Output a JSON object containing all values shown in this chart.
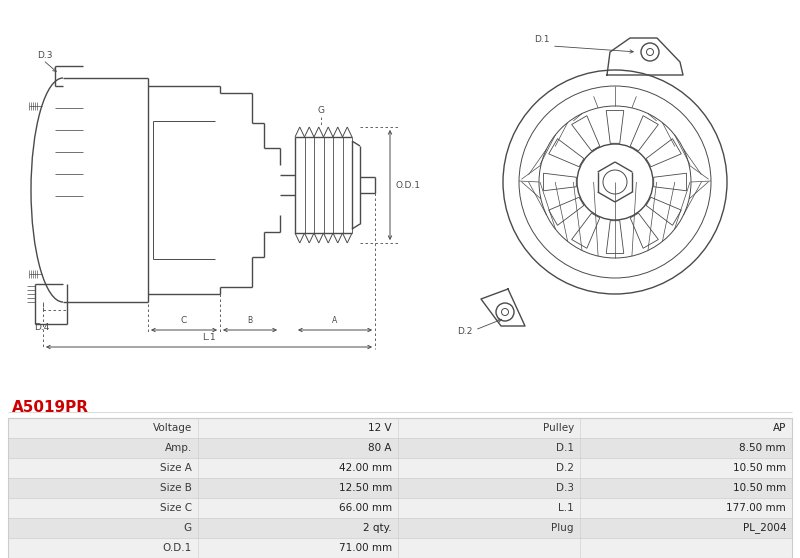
{
  "title": "A5019PR",
  "title_color": "#cc0000",
  "bg_color": "#ffffff",
  "table_row_bg1": "#f0f0f0",
  "table_row_bg2": "#e4e4e4",
  "table_border_color": "#cccccc",
  "table_data": [
    [
      "Voltage",
      "12 V",
      "Pulley",
      "AP"
    ],
    [
      "Amp.",
      "80 A",
      "D.1",
      "8.50 mm"
    ],
    [
      "Size A",
      "42.00 mm",
      "D.2",
      "10.50 mm"
    ],
    [
      "Size B",
      "12.50 mm",
      "D.3",
      "10.50 mm"
    ],
    [
      "Size C",
      "66.00 mm",
      "L.1",
      "177.00 mm"
    ],
    [
      "G",
      "2 qty.",
      "Plug",
      "PL_2004"
    ],
    [
      "O.D.1",
      "71.00 mm",
      "",
      ""
    ]
  ],
  "lc": "#4a4a4a",
  "lw": 1.0,
  "fs": 6.5,
  "font_size_table": 7.5,
  "font_size_title": 11
}
